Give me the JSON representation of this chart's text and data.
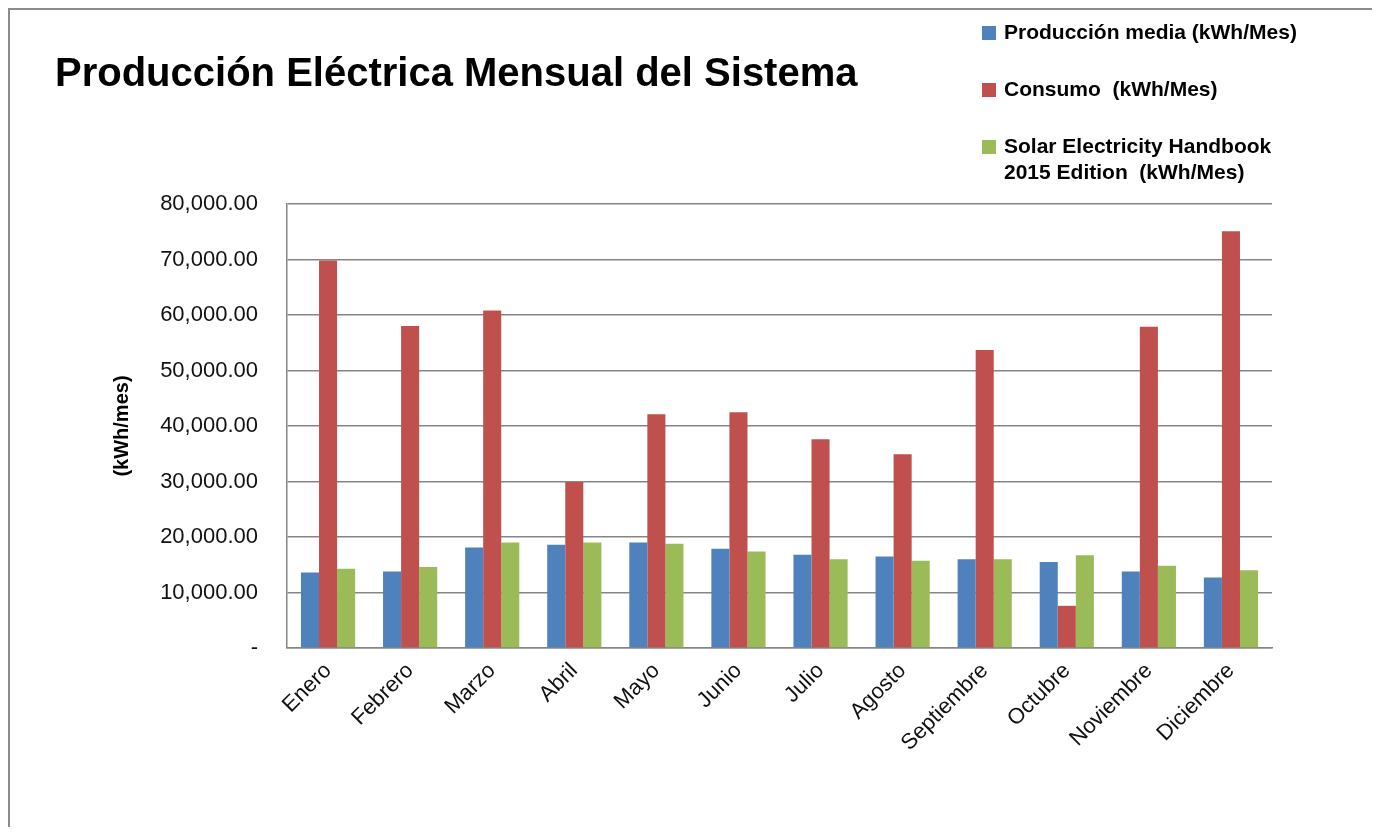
{
  "chart_data": {
    "type": "bar",
    "title": "Producción Eléctrica Mensual del Sistema",
    "ylabel": "(kWh/mes)",
    "categories": [
      "Enero",
      "Febrero",
      "Marzo",
      "Abril",
      "Mayo",
      "Junio",
      "Julio",
      "Agosto",
      "Septiembre",
      "Octubre",
      "Noviembre",
      "Diciembre"
    ],
    "series": [
      {
        "name": "Producción media (kWh/Mes)",
        "color": "#4f81bd",
        "values": [
          13600,
          13800,
          18100,
          18600,
          19000,
          17900,
          16800,
          16500,
          16000,
          15500,
          13800,
          12700
        ]
      },
      {
        "name": "Consumo  (kWh/Mes)",
        "color": "#c0504d",
        "values": [
          69800,
          58000,
          60800,
          29900,
          42100,
          42500,
          37600,
          34900,
          53700,
          7600,
          57900,
          75100
        ]
      },
      {
        "name": "Solar Electricity Handbook 2015 Edition  (kWh/Mes)",
        "color": "#9bbb59",
        "values": [
          14300,
          14600,
          19000,
          19000,
          18800,
          17400,
          16000,
          15700,
          16000,
          16700,
          14800,
          14000
        ]
      }
    ],
    "ylim": [
      0,
      80000
    ],
    "yticks": [
      {
        "value": 0,
        "label": "-"
      },
      {
        "value": 10000,
        "label": "10,000.00"
      },
      {
        "value": 20000,
        "label": "20,000.00"
      },
      {
        "value": 30000,
        "label": "30,000.00"
      },
      {
        "value": 40000,
        "label": "40,000.00"
      },
      {
        "value": 50000,
        "label": "50,000.00"
      },
      {
        "value": 60000,
        "label": "60,000.00"
      },
      {
        "value": 70000,
        "label": "70,000.00"
      },
      {
        "value": 80000,
        "label": "80,000.00"
      }
    ],
    "grid": "y",
    "legend": "top right"
  }
}
